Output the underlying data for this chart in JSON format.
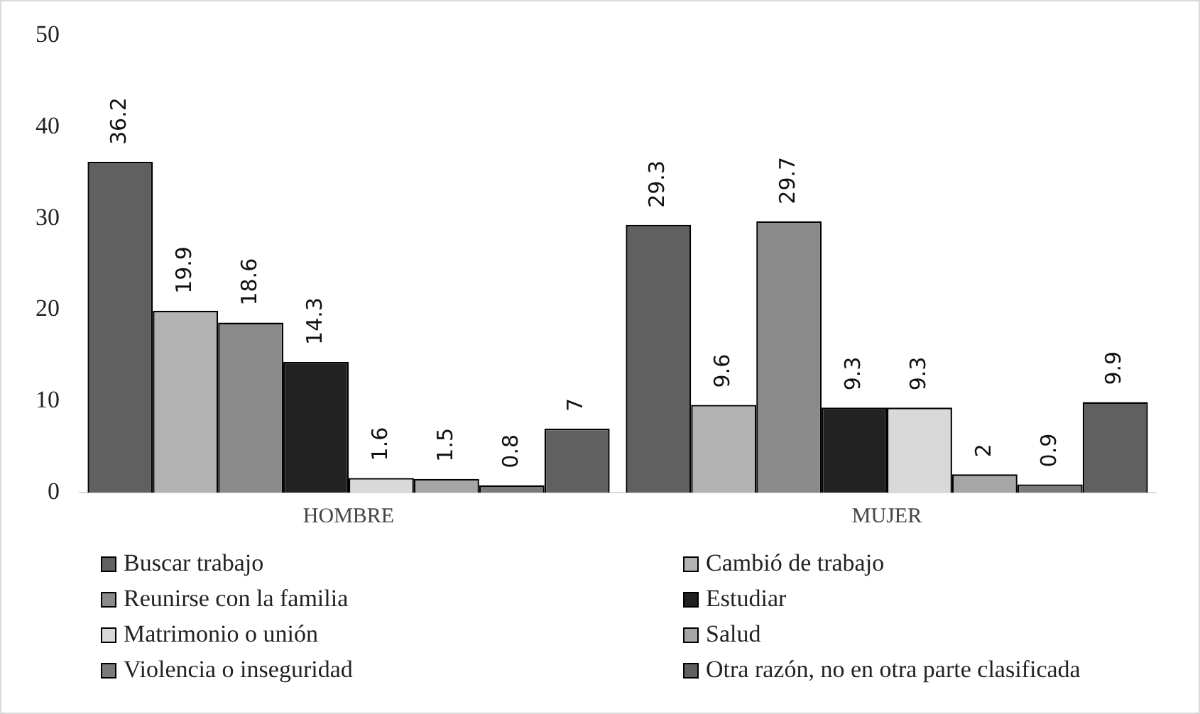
{
  "chart_data": {
    "type": "bar",
    "categories": [
      "HOMBRE",
      "MUJER"
    ],
    "series": [
      {
        "name": "Buscar trabajo",
        "color": "#606060",
        "values": [
          36.2,
          29.3
        ]
      },
      {
        "name": "Cambió de trabajo",
        "color": "#b3b3b3",
        "values": [
          19.9,
          9.6
        ]
      },
      {
        "name": "Reunirse con la familia",
        "color": "#8a8a8a",
        "values": [
          18.6,
          29.7
        ]
      },
      {
        "name": "Estudiar",
        "color": "#222222",
        "values": [
          14.3,
          9.3
        ]
      },
      {
        "name": "Matrimonio o unión",
        "color": "#d9d9d9",
        "values": [
          1.6,
          9.3
        ]
      },
      {
        "name": "Salud",
        "color": "#a6a6a6",
        "values": [
          1.5,
          2
        ]
      },
      {
        "name": "Violencia o inseguridad",
        "color": "#7a7a7a",
        "values": [
          0.8,
          0.9
        ]
      },
      {
        "name": "Otra razón, no en otra parte clasificada",
        "color": "#606060",
        "values": [
          7,
          9.9
        ]
      }
    ],
    "ylim": [
      0,
      50
    ],
    "yticks": [
      0,
      10,
      20,
      30,
      40,
      50
    ],
    "grid": false,
    "legend": "bottom",
    "data_labels": true
  }
}
